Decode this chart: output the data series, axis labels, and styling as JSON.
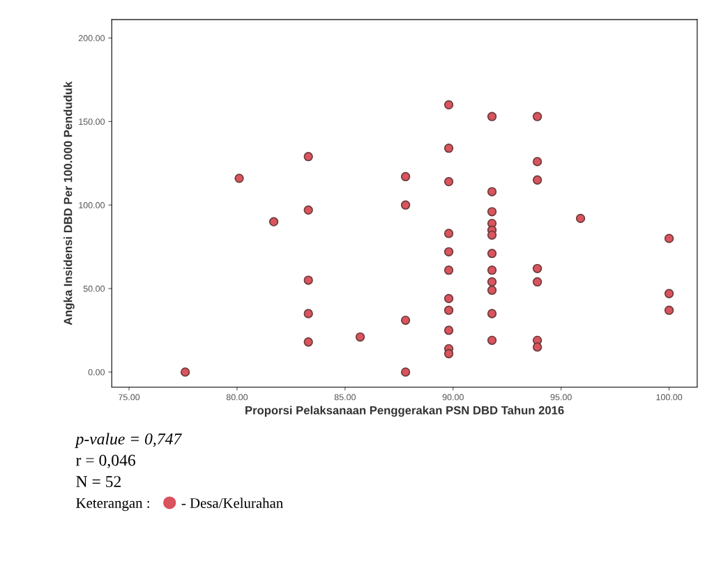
{
  "chart_data": {
    "type": "scatter",
    "xlabel": "Proporsi Pelaksanaan Penggerakan PSN DBD Tahun 2016",
    "ylabel": "Angka Insidensi DBD Per 100.000 Penduduk",
    "x": [
      77.6,
      80.1,
      81.7,
      83.3,
      83.3,
      83.3,
      83.3,
      83.3,
      85.7,
      87.8,
      87.8,
      87.8,
      87.8,
      89.8,
      89.8,
      89.8,
      89.8,
      89.8,
      89.8,
      89.8,
      89.8,
      89.8,
      89.8,
      89.8,
      91.8,
      91.8,
      91.8,
      91.8,
      91.8,
      91.8,
      91.8,
      91.8,
      91.8,
      91.8,
      91.8,
      91.8,
      93.9,
      93.9,
      93.9,
      93.9,
      93.9,
      93.9,
      93.9,
      95.9,
      100,
      100,
      100
    ],
    "series": [
      {
        "name": "- Desa/Kelurahan",
        "color": "#d9545e",
        "values": [
          0,
          116,
          90,
          129,
          97,
          55,
          35,
          18,
          21,
          117,
          100,
          31,
          0,
          160,
          134,
          114,
          83,
          72,
          61,
          44,
          37,
          25,
          14,
          11,
          153,
          108,
          96,
          89,
          85,
          82,
          71,
          61,
          54,
          49,
          35,
          19,
          153,
          126,
          115,
          62,
          54,
          19,
          15,
          92,
          80,
          47,
          37
        ]
      }
    ],
    "xlim": [
      74.2,
      101.3
    ],
    "xticks": [
      {
        "value": 75,
        "label": "75.00"
      },
      {
        "value": 80,
        "label": "80.00"
      },
      {
        "value": 85,
        "label": "85.00"
      },
      {
        "value": 90,
        "label": "90.00"
      },
      {
        "value": 95,
        "label": "95.00"
      },
      {
        "value": 100,
        "label": "100.00"
      }
    ],
    "ylim": [
      -9,
      211
    ],
    "yticks": [
      {
        "value": 0,
        "label": "0.00"
      },
      {
        "value": 50,
        "label": "50.00"
      },
      {
        "value": 100,
        "label": "100.00"
      },
      {
        "value": 150,
        "label": "150.00"
      },
      {
        "value": 200,
        "label": "200.00"
      }
    ],
    "annotations": [
      "p-value = 0,747",
      "r = 0,046",
      "N = 52"
    ],
    "legend_title": "Keterangan :",
    "legend": "bottom left",
    "marker": "circle",
    "grid": false
  }
}
